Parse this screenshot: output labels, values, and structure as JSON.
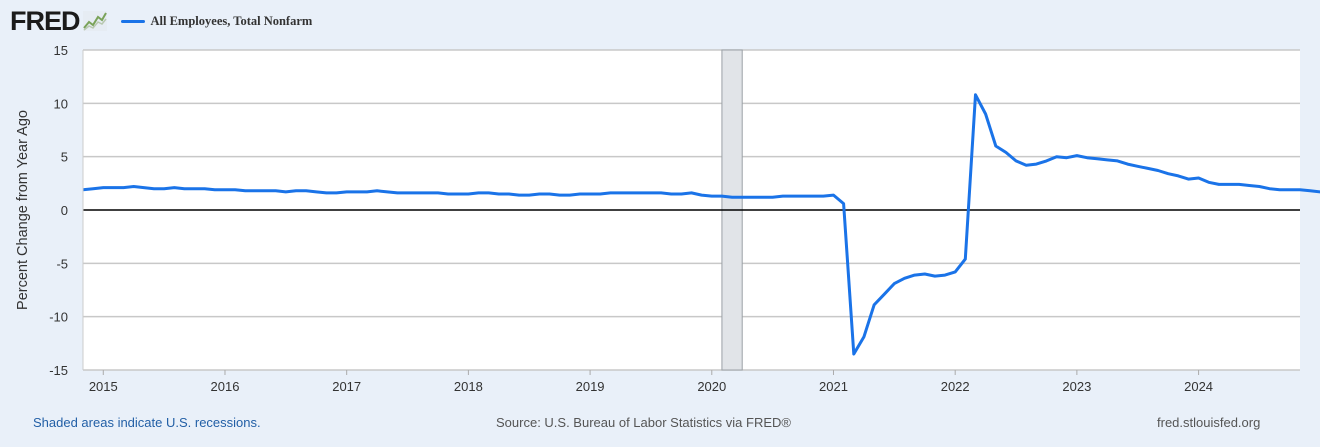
{
  "brand": {
    "name": "FRED",
    "logo_icon": "line-graph-icon"
  },
  "legend": {
    "label": "All Employees, Total Nonfarm",
    "color": "#1a73e8"
  },
  "footer": {
    "recession_note": "Shaded areas indicate U.S. recessions.",
    "source": "Source: U.S. Bureau of Labor Statistics via FRED®",
    "site": "fred.stlouisfed.org"
  },
  "colors": {
    "page_background": "#e9f0f9",
    "plot_background": "#ffffff",
    "gridline": "#c8c8c8",
    "recession_shade": "#e1e4e8",
    "zero_line": "#000000"
  },
  "chart_data": {
    "type": "line",
    "title": "",
    "xlabel": "",
    "ylabel": "Percent Change from Year Ago",
    "ylim": [
      -15,
      15
    ],
    "yticks": [
      15,
      10,
      5,
      0,
      -5,
      -10,
      -15
    ],
    "xlim": [
      "2014-11",
      "2024-11"
    ],
    "xticks": [
      "2015",
      "2016",
      "2017",
      "2018",
      "2019",
      "2020",
      "2021",
      "2022",
      "2023",
      "2024"
    ],
    "grid": true,
    "legend_position": "top-left",
    "recessions": [
      {
        "start": "2020-02",
        "end": "2020-04"
      }
    ],
    "series": [
      {
        "name": "All Employees, Total Nonfarm",
        "color": "#1a73e8",
        "start": "2014-11",
        "frequency": "monthly",
        "values": [
          1.9,
          2.0,
          2.1,
          2.1,
          2.1,
          2.2,
          2.1,
          2.0,
          2.0,
          2.1,
          2.0,
          2.0,
          2.0,
          1.9,
          1.9,
          1.9,
          1.8,
          1.8,
          1.8,
          1.8,
          1.7,
          1.8,
          1.8,
          1.7,
          1.6,
          1.6,
          1.7,
          1.7,
          1.7,
          1.8,
          1.7,
          1.6,
          1.6,
          1.6,
          1.6,
          1.6,
          1.5,
          1.5,
          1.5,
          1.6,
          1.6,
          1.5,
          1.5,
          1.4,
          1.4,
          1.5,
          1.5,
          1.4,
          1.4,
          1.5,
          1.5,
          1.5,
          1.6,
          1.6,
          1.6,
          1.6,
          1.6,
          1.6,
          1.5,
          1.5,
          1.6,
          1.4,
          1.3,
          1.3,
          1.2,
          1.2,
          1.2,
          1.2,
          1.2,
          1.3,
          1.3,
          1.3,
          1.3,
          1.3,
          1.4,
          0.6,
          -13.5,
          -11.9,
          -8.9,
          -7.9,
          -6.9,
          -6.4,
          -6.1,
          -6.0,
          -6.2,
          -6.1,
          -5.8,
          -4.6,
          10.8,
          9.0,
          6.0,
          5.4,
          4.6,
          4.2,
          4.3,
          4.6,
          5.0,
          4.9,
          5.1,
          4.9,
          4.8,
          4.7,
          4.6,
          4.3,
          4.1,
          3.9,
          3.7,
          3.4,
          3.2,
          2.9,
          3.0,
          2.6,
          2.4,
          2.4,
          2.4,
          2.3,
          2.2,
          2.0,
          1.9,
          1.9,
          1.9,
          1.8,
          1.7,
          1.8,
          1.8,
          1.7,
          1.6,
          1.6,
          1.5,
          1.5,
          1.4,
          1.4,
          1.4
        ]
      }
    ]
  }
}
